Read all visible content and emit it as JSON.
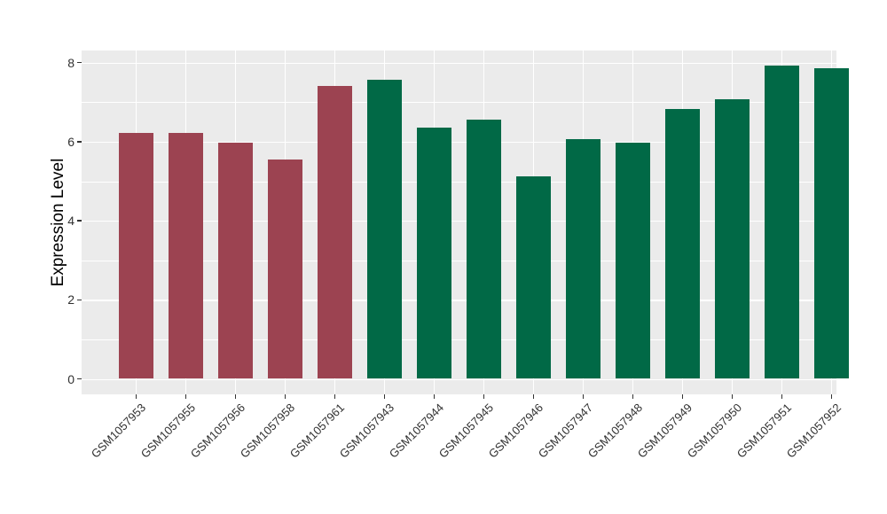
{
  "chart_data": {
    "type": "bar",
    "title": "",
    "xlabel": "",
    "ylabel": "Expression Level",
    "categories": [
      "GSM1057953",
      "GSM1057955",
      "GSM1057956",
      "GSM1057958",
      "GSM1057961",
      "GSM1057943",
      "GSM1057944",
      "GSM1057945",
      "GSM1057946",
      "GSM1057947",
      "GSM1057948",
      "GSM1057949",
      "GSM1057950",
      "GSM1057951",
      "GSM1057952"
    ],
    "values": [
      6.22,
      6.22,
      5.97,
      5.55,
      7.42,
      7.57,
      6.35,
      6.56,
      5.12,
      6.06,
      5.97,
      6.82,
      7.07,
      7.92,
      7.85
    ],
    "bar_colors": [
      "#9C4351",
      "#9C4351",
      "#9C4351",
      "#9C4351",
      "#9C4351",
      "#016946",
      "#016946",
      "#016946",
      "#016946",
      "#016946",
      "#016946",
      "#016946",
      "#016946",
      "#016946",
      "#016946"
    ],
    "group_colors": {
      "red_group": "#9C4351",
      "green_group": "#016946"
    },
    "ylim": [
      -0.4,
      8.3
    ],
    "yticks": [
      0,
      2,
      4,
      6,
      8
    ],
    "yticks_minor": [
      1,
      3,
      5,
      7
    ],
    "grid": "on",
    "legend": "none",
    "panel_bg": "#EBEBEB",
    "grid_color": "#FFFFFF",
    "tick_color": "#333333",
    "axis_text_color": "#303030"
  }
}
